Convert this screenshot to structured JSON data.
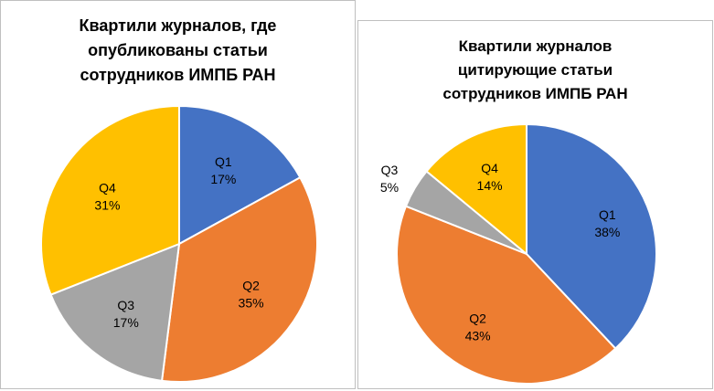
{
  "chart_data": [
    {
      "type": "pie",
      "title_lines": [
        "Квартили журналов, где",
        "опубликованы статьи",
        "сотрудников ИМПБ РАН"
      ],
      "categories": [
        "Q1",
        "Q2",
        "Q3",
        "Q4"
      ],
      "values": [
        17,
        35,
        17,
        31
      ],
      "value_labels": [
        "17%",
        "35%",
        "17%",
        "31%"
      ],
      "colors": [
        "#4472C4",
        "#ED7D31",
        "#A5A5A5",
        "#FFC000"
      ],
      "start": "12 o'clock, clockwise"
    },
    {
      "type": "pie",
      "title_lines": [
        "Квартили журналов",
        "цитирующие статьи",
        "сотрудников ИМПБ РАН"
      ],
      "categories": [
        "Q1",
        "Q2",
        "Q3",
        "Q4"
      ],
      "values": [
        38,
        43,
        5,
        14
      ],
      "value_labels": [
        "38%",
        "43%",
        "5%",
        "14%"
      ],
      "colors": [
        "#4472C4",
        "#ED7D31",
        "#A5A5A5",
        "#FFC000"
      ],
      "start": "12 o'clock, clockwise"
    }
  ]
}
